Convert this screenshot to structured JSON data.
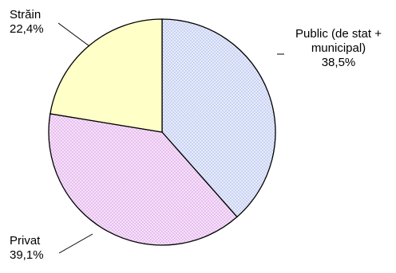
{
  "chart_data": {
    "type": "pie",
    "title": "",
    "slices": [
      {
        "label": "Public (de stat + municipal)",
        "label_lines": [
          "Public (de stat +",
          "municipal)"
        ],
        "value": 38.5,
        "value_text": "38,5%",
        "color": "#c9d3f3",
        "pattern": "checker"
      },
      {
        "label": "Privat",
        "label_lines": [
          "Privat"
        ],
        "value": 39.1,
        "value_text": "39,1%",
        "color": "#e8bff0",
        "pattern": "checker"
      },
      {
        "label": "Străin",
        "label_lines": [
          "Străin"
        ],
        "value": 22.4,
        "value_text": "22,4%",
        "color": "#ffffc8",
        "pattern": "none"
      }
    ],
    "start_angle": "12 o'clock",
    "direction": "clockwise",
    "legend": "none",
    "data_labels": "outside with leader lines"
  }
}
